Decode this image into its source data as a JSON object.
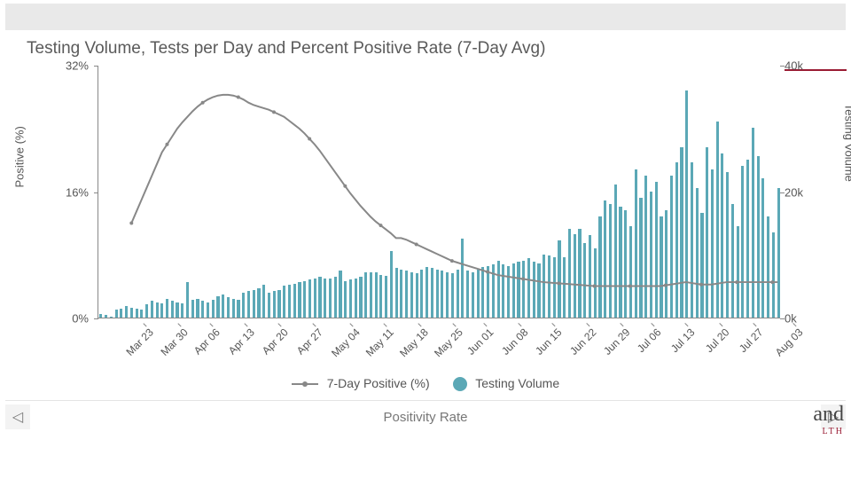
{
  "title": "Testing Volume, Tests per Day and Percent Positive Rate (7-Day Avg)",
  "chart": {
    "type": "bar+line",
    "background_color": "#ffffff",
    "plot_border_color": "#888888",
    "accent_color": "#9a1b33",
    "bar_color": "#5ba8b6",
    "line_color": "#888888",
    "line_width": 2,
    "marker_radius": 2,
    "bar_width_ratio": 0.55,
    "axis_font_size": 13,
    "x_tick_font_size": 12,
    "y_left": {
      "title": "Positive (%)",
      "min": 0,
      "max": 32,
      "ticks": [
        0,
        16,
        32
      ],
      "tick_labels": [
        "0%",
        "16%",
        "32%"
      ]
    },
    "y_right": {
      "title": "Testing Volume",
      "min": 0,
      "max": 40000,
      "ticks": [
        0,
        20000,
        40000
      ],
      "tick_labels": [
        "0k",
        "20k",
        "40k"
      ]
    },
    "x_ticks": [
      "Mar 23",
      "Mar 30",
      "Apr 06",
      "Apr 13",
      "Apr 20",
      "Apr 27",
      "May 04",
      "May 11",
      "May 18",
      "May 25",
      "Jun 01",
      "Jun 08",
      "Jun 15",
      "Jun 22",
      "Jun 29",
      "Jul 06",
      "Jul 13",
      "Jul 20",
      "Jul 27",
      "Aug 03"
    ],
    "volume": [
      600,
      400,
      200,
      1200,
      1400,
      1800,
      1600,
      1400,
      1200,
      2100,
      2600,
      2400,
      2200,
      3000,
      2600,
      2400,
      2200,
      5600,
      2800,
      3000,
      2600,
      2400,
      2800,
      3400,
      3600,
      3200,
      3000,
      2800,
      4000,
      4200,
      4400,
      4600,
      5200,
      4000,
      4200,
      4400,
      5100,
      5200,
      5400,
      5600,
      5800,
      6000,
      6200,
      6400,
      6200,
      6200,
      6400,
      7400,
      5800,
      6000,
      6200,
      6400,
      7200,
      7200,
      7200,
      6800,
      6600,
      10500,
      7800,
      7600,
      7400,
      7200,
      7000,
      7600,
      8000,
      7800,
      7600,
      7400,
      7200,
      7000,
      7600,
      12500,
      7400,
      7200,
      7600,
      8000,
      8200,
      8400,
      9000,
      8400,
      8200,
      8600,
      8800,
      9000,
      9400,
      8800,
      8600,
      10000,
      9800,
      9600,
      12200,
      9600,
      14000,
      13200,
      14000,
      11800,
      13000,
      11000,
      16000,
      18500,
      18000,
      21000,
      17500,
      17000,
      14500,
      23500,
      19000,
      22500,
      20000,
      21500,
      16000,
      17000,
      22500,
      24500,
      27000,
      36000,
      24500,
      20500,
      16500,
      27000,
      23500,
      31000,
      26000,
      23000,
      18000,
      14500,
      24000,
      25000,
      30000,
      25500,
      22000,
      16000,
      13500,
      20500
    ],
    "positive_pct": [
      null,
      null,
      null,
      null,
      null,
      null,
      12.0,
      13.5,
      15.0,
      16.5,
      18.0,
      19.5,
      21.0,
      22.0,
      23.0,
      24.0,
      24.8,
      25.5,
      26.2,
      26.8,
      27.3,
      27.7,
      28.0,
      28.2,
      28.3,
      28.3,
      28.2,
      28.0,
      27.7,
      27.3,
      27.0,
      26.8,
      26.6,
      26.4,
      26.1,
      25.8,
      25.5,
      25.0,
      24.5,
      24.0,
      23.4,
      22.7,
      22.0,
      21.2,
      20.3,
      19.4,
      18.5,
      17.6,
      16.7,
      15.8,
      15.0,
      14.2,
      13.5,
      12.8,
      12.2,
      11.7,
      11.2,
      10.7,
      10.1,
      10.1,
      9.9,
      9.6,
      9.3,
      9.0,
      8.7,
      8.4,
      8.1,
      7.8,
      7.5,
      7.2,
      7.0,
      6.8,
      6.6,
      6.4,
      6.2,
      6.0,
      5.8,
      5.6,
      5.4,
      5.3,
      5.2,
      5.1,
      5.0,
      4.9,
      4.8,
      4.7,
      4.6,
      4.5,
      4.45,
      4.4,
      4.35,
      4.3,
      4.25,
      4.2,
      4.15,
      4.1,
      4.05,
      4.0,
      4.0,
      4.0,
      4.0,
      4.0,
      4.0,
      4.0,
      4.0,
      4.0,
      4.0,
      4.0,
      4.0,
      4.0,
      4.0,
      4.1,
      4.2,
      4.3,
      4.4,
      4.5,
      4.4,
      4.3,
      4.2,
      4.2,
      4.2,
      4.3,
      4.4,
      4.5,
      4.5,
      4.5,
      4.5,
      4.5,
      4.5,
      4.5,
      4.5,
      4.5,
      4.5,
      4.5
    ]
  },
  "legend": {
    "line_label": "7-Day Positive (%)",
    "bar_label": "Testing Volume"
  },
  "footer": {
    "tab": "Positivity Rate",
    "brand_suffix": "and",
    "brand_sub": "LTH"
  }
}
